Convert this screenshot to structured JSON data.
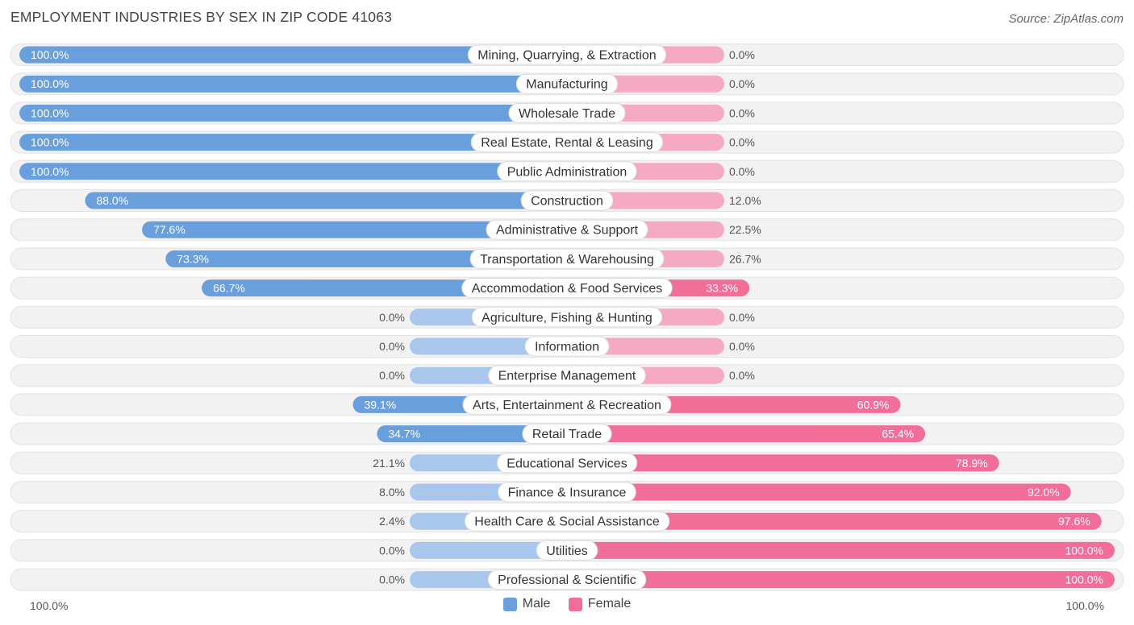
{
  "title": "EMPLOYMENT INDUSTRIES BY SEX IN ZIP CODE 41063",
  "source": "Source: ZipAtlas.com",
  "axis_left_label": "100.0%",
  "axis_right_label": "100.0%",
  "colors": {
    "male_strong": "#6a9fdd",
    "male_light": "#a9c7ec",
    "female_strong": "#f06e98",
    "female_light": "#f6a9c2",
    "track": "#f0f0f0",
    "label_text": "#333333"
  },
  "chart_data": {
    "type": "bar",
    "orientation": "horizontal-diverging",
    "title": "EMPLOYMENT INDUSTRIES BY SEX IN ZIP CODE 41063",
    "categories": [
      "Mining, Quarrying, & Extraction",
      "Manufacturing",
      "Wholesale Trade",
      "Real Estate, Rental & Leasing",
      "Public Administration",
      "Construction",
      "Administrative & Support",
      "Transportation & Warehousing",
      "Accommodation & Food Services",
      "Agriculture, Fishing & Hunting",
      "Information",
      "Enterprise Management",
      "Arts, Entertainment & Recreation",
      "Retail Trade",
      "Educational Services",
      "Finance & Insurance",
      "Health Care & Social Assistance",
      "Utilities",
      "Professional & Scientific"
    ],
    "series": [
      {
        "name": "Male",
        "values": [
          100.0,
          100.0,
          100.0,
          100.0,
          100.0,
          88.0,
          77.6,
          73.3,
          66.7,
          0.0,
          0.0,
          0.0,
          39.1,
          34.7,
          21.1,
          8.0,
          2.4,
          0.0,
          0.0
        ],
        "labels": [
          "100.0%",
          "100.0%",
          "100.0%",
          "100.0%",
          "100.0%",
          "88.0%",
          "77.6%",
          "73.3%",
          "66.7%",
          "0.0%",
          "0.0%",
          "0.0%",
          "39.1%",
          "34.7%",
          "21.1%",
          "8.0%",
          "2.4%",
          "0.0%",
          "0.0%"
        ]
      },
      {
        "name": "Female",
        "values": [
          0.0,
          0.0,
          0.0,
          0.0,
          0.0,
          12.0,
          22.5,
          26.7,
          33.3,
          0.0,
          0.0,
          0.0,
          60.9,
          65.4,
          78.9,
          92.0,
          97.6,
          100.0,
          100.0
        ],
        "labels": [
          "0.0%",
          "0.0%",
          "0.0%",
          "0.0%",
          "0.0%",
          "12.0%",
          "22.5%",
          "26.7%",
          "33.3%",
          "0.0%",
          "0.0%",
          "0.0%",
          "60.9%",
          "65.4%",
          "78.9%",
          "92.0%",
          "97.6%",
          "100.0%",
          "100.0%"
        ]
      }
    ],
    "xlim": [
      -100,
      100
    ],
    "legend": {
      "position": "bottom-center",
      "entries": [
        "Male",
        "Female"
      ]
    },
    "grid": false
  }
}
